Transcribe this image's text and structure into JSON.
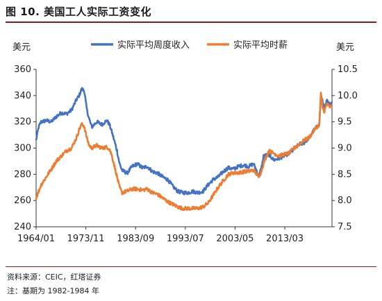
{
  "header": {
    "title": "图 10. 美国工人实际工资变化"
  },
  "footer": {
    "source": "资料来源：CEIC，红塔证券",
    "note": "注：基期为 1982-1984 年"
  },
  "chart_data": {
    "type": "line",
    "title": "",
    "ylabel_left": "美元",
    "ylabel_right": "美元",
    "xlabel": "",
    "x_tick_labels": [
      "1964/01",
      "1973/11",
      "1983/09",
      "1993/07",
      "2003/05",
      "2013/03"
    ],
    "x_tick_values": [
      1964.0,
      1973.83,
      1983.67,
      1993.5,
      2003.33,
      2013.17
    ],
    "xlim": [
      1964.0,
      2022.5
    ],
    "ylim_left": [
      240,
      360
    ],
    "ylim_right": [
      7.5,
      10.5
    ],
    "y_ticks_left": [
      "240",
      "260",
      "280",
      "300",
      "320",
      "340",
      "360"
    ],
    "y_ticks_right": [
      "7.5",
      "8.0",
      "8.5",
      "9.0",
      "9.5",
      "10.0",
      "10.5"
    ],
    "legend_position": "top",
    "grid": false,
    "series": [
      {
        "name": "实际平均周度收入",
        "axis": "left",
        "color": "#4472c4",
        "x": [
          1964.0,
          1964.5,
          1965,
          1966,
          1967,
          1968,
          1969,
          1970,
          1971,
          1972,
          1972.5,
          1973,
          1973.5,
          1974,
          1974.5,
          1975,
          1976,
          1977,
          1978,
          1978.5,
          1979,
          1980,
          1980.5,
          1981,
          1982,
          1983,
          1984,
          1985,
          1986,
          1987,
          1988,
          1989,
          1990,
          1991,
          1992,
          1993,
          1994,
          1995,
          1996,
          1997,
          1998,
          1999,
          2000,
          2001,
          2002,
          2003,
          2004,
          2005,
          2006,
          2007,
          2008,
          2008.5,
          2009,
          2010,
          2011,
          2012,
          2013,
          2014,
          2015,
          2016,
          2017,
          2018,
          2019,
          2020,
          2020.3,
          2020.6,
          2021,
          2021.5,
          2022,
          2022.5
        ],
        "values": [
          306,
          316,
          320,
          321,
          320,
          324,
          327,
          326,
          329,
          337,
          340,
          345,
          344,
          330,
          322,
          316,
          320,
          318,
          321,
          318,
          312,
          298,
          288,
          283,
          281,
          286,
          288,
          285,
          286,
          282,
          281,
          278,
          276,
          271,
          267,
          266,
          266,
          267,
          266,
          267,
          272,
          276,
          278,
          282,
          285,
          284,
          286,
          287,
          286,
          288,
          279,
          284,
          294,
          295,
          291,
          292,
          294,
          296,
          299,
          303,
          304,
          308,
          314,
          318,
          340,
          336,
          330,
          336,
          333,
          335
        ]
      },
      {
        "name": "实际平均时薪",
        "axis": "right",
        "color": "#ed7d31",
        "x": [
          1964.0,
          1965,
          1966,
          1967,
          1968,
          1969,
          1970,
          1971,
          1972,
          1972.5,
          1973,
          1973.5,
          1974,
          1974.5,
          1975,
          1976,
          1977,
          1978,
          1978.5,
          1979,
          1980,
          1980.5,
          1981,
          1982,
          1983,
          1984,
          1985,
          1986,
          1987,
          1988,
          1989,
          1990,
          1991,
          1992,
          1993,
          1994,
          1995,
          1996,
          1997,
          1998,
          1999,
          2000,
          2001,
          2002,
          2003,
          2004,
          2005,
          2006,
          2007,
          2008,
          2008.5,
          2009,
          2010,
          2011,
          2012,
          2013,
          2014,
          2015,
          2016,
          2017,
          2018,
          2019,
          2020,
          2020.3,
          2020.6,
          2021,
          2021.5,
          2022,
          2022.5
        ],
        "values": [
          8.05,
          8.3,
          8.45,
          8.6,
          8.75,
          8.85,
          8.95,
          9.0,
          9.2,
          9.35,
          9.45,
          9.42,
          9.2,
          9.05,
          9.0,
          9.05,
          9.0,
          9.02,
          8.98,
          8.85,
          8.45,
          8.25,
          8.15,
          8.18,
          8.22,
          8.22,
          8.2,
          8.22,
          8.15,
          8.12,
          8.05,
          7.98,
          7.93,
          7.88,
          7.85,
          7.85,
          7.85,
          7.85,
          7.88,
          7.95,
          8.1,
          8.25,
          8.38,
          8.5,
          8.53,
          8.53,
          8.55,
          8.56,
          8.58,
          8.45,
          8.55,
          8.72,
          8.95,
          8.9,
          8.85,
          8.88,
          8.9,
          9.0,
          9.07,
          9.15,
          9.2,
          9.35,
          9.45,
          10.05,
          9.78,
          9.7,
          9.85,
          9.78,
          9.8
        ]
      }
    ]
  }
}
